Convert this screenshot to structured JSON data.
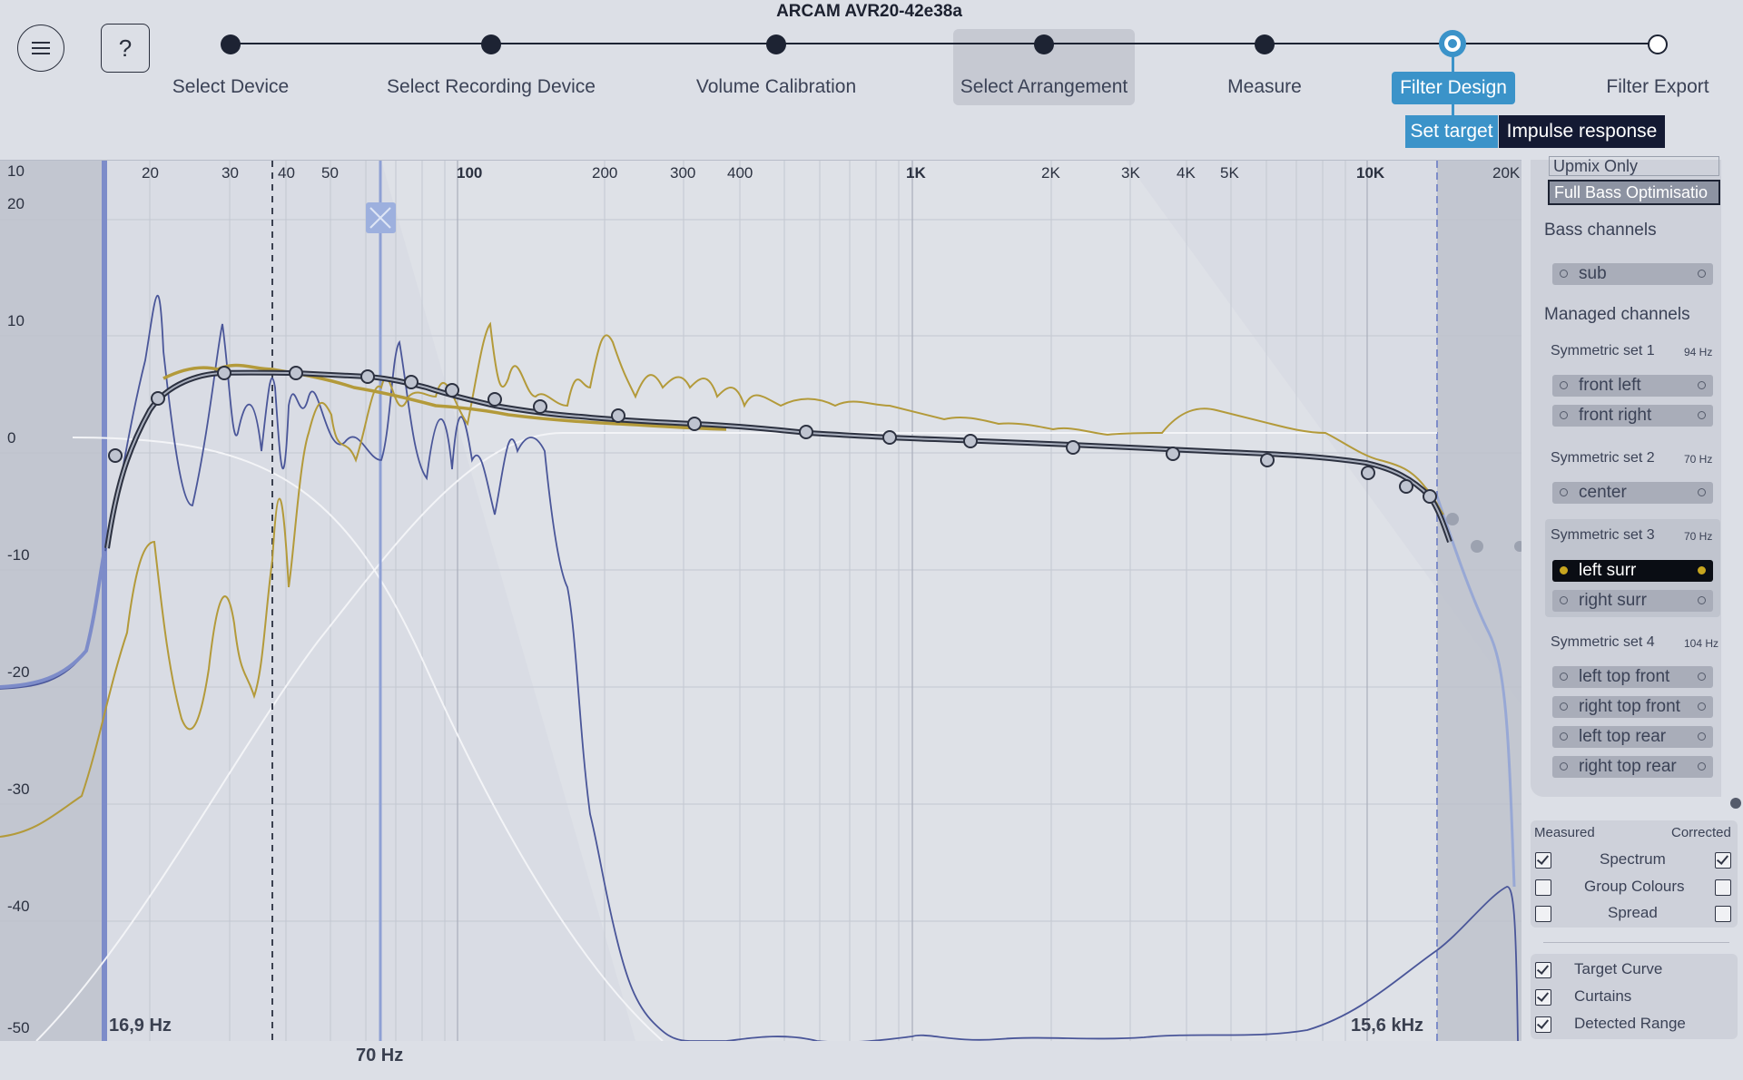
{
  "app_title": "ARCAM AVR20-42e38a",
  "header": {
    "menu_icon": "hamburger-menu-icon",
    "help_label": "?"
  },
  "steps": [
    {
      "label": "Select Device",
      "state": "done"
    },
    {
      "label": "Select Recording Device",
      "state": "done"
    },
    {
      "label": "Volume Calibration",
      "state": "done"
    },
    {
      "label": "Select Arrangement",
      "state": "done"
    },
    {
      "label": "Measure",
      "state": "done"
    },
    {
      "label": "Filter Design",
      "state": "active"
    },
    {
      "label": "Filter Export",
      "state": "todo"
    }
  ],
  "substeps": {
    "set_target": "Set target",
    "impulse_response": "Impulse response"
  },
  "plot": {
    "y_ticks": [
      "20",
      "10",
      "0",
      "-10",
      "-20",
      "-30",
      "-40",
      "-50"
    ],
    "y_top_tick": "10",
    "x_ticks": [
      "20",
      "30",
      "40",
      "50",
      "100",
      "200",
      "300",
      "400",
      "1K",
      "2K",
      "3K",
      "4K",
      "5K",
      "10K",
      "20K"
    ],
    "low_range": "16,9 Hz",
    "high_range": "15,6 kHz",
    "crossover": "70 Hz",
    "colors": {
      "corrected": "#b39a3a",
      "measured": "#4a5699",
      "target": "#2c3140",
      "curtain_edge": "#7d8cc9"
    }
  },
  "side": {
    "mode_options": [
      "Upmix Only",
      "Full Bass Optimisatio"
    ],
    "bass_header": "Bass channels",
    "bass_channels": [
      "sub"
    ],
    "managed_header": "Managed channels",
    "sets": [
      {
        "name": "Symmetric set 1",
        "hz": "94 Hz",
        "channels": [
          "front left",
          "front right"
        ]
      },
      {
        "name": "Symmetric set 2",
        "hz": "70 Hz",
        "channels": [
          "center"
        ]
      },
      {
        "name": "Symmetric set 3",
        "hz": "70 Hz",
        "channels": [
          "left surr",
          "right surr"
        ]
      },
      {
        "name": "Symmetric set 4",
        "hz": "104 Hz",
        "channels": [
          "left top front",
          "right top front",
          "left top rear",
          "right top rear"
        ]
      }
    ],
    "selected_channel": "left surr"
  },
  "options": {
    "measured": "Measured",
    "corrected": "Corrected",
    "rows": [
      {
        "label": "Spectrum",
        "measured": true,
        "corrected": true
      },
      {
        "label": "Group Colours",
        "measured": false,
        "corrected": false
      },
      {
        "label": "Spread",
        "measured": false,
        "corrected": false
      }
    ],
    "toggles": [
      {
        "label": "Target Curve",
        "checked": true
      },
      {
        "label": "Curtains",
        "checked": true
      },
      {
        "label": "Detected Range",
        "checked": true
      }
    ]
  }
}
